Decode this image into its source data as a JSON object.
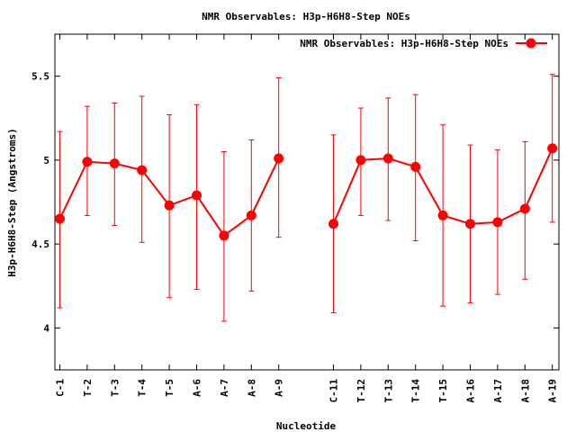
{
  "chart_data": {
    "type": "line",
    "title": "NMR Observables: H3p-H6H8-Step NOEs",
    "xlabel": "Nucleotide",
    "ylabel": "H3p-H6H8-Step (Angstroms)",
    "ylim": [
      3.75,
      5.75
    ],
    "yticks": [
      "4",
      "4.5",
      "5",
      "5.5"
    ],
    "grid": false,
    "legend_position": "top-right",
    "categories": [
      "C-1",
      "T-2",
      "T-3",
      "T-4",
      "T-5",
      "A-6",
      "A-7",
      "A-8",
      "A-9",
      "",
      "C-11",
      "T-12",
      "T-13",
      "T-14",
      "T-15",
      "A-16",
      "A-17",
      "A-18",
      "A-19"
    ],
    "series": [
      {
        "name": "NMR Observables: H3p-H6H8-Step NOEs",
        "color": "#ff0000",
        "values": [
          4.65,
          4.99,
          4.98,
          4.94,
          4.73,
          4.79,
          4.55,
          4.67,
          5.01,
          null,
          4.62,
          5.0,
          5.01,
          4.96,
          4.67,
          4.62,
          4.63,
          4.71,
          5.07
        ],
        "err_low": [
          4.12,
          4.67,
          4.61,
          4.51,
          4.18,
          4.23,
          4.04,
          4.22,
          4.54,
          null,
          4.09,
          4.67,
          4.64,
          4.52,
          4.13,
          4.15,
          4.2,
          4.29,
          4.63
        ],
        "err_high": [
          5.17,
          5.32,
          5.34,
          5.38,
          5.27,
          5.33,
          5.05,
          5.12,
          5.49,
          null,
          5.15,
          5.31,
          5.37,
          5.39,
          5.21,
          5.09,
          5.06,
          5.11,
          5.51
        ]
      }
    ]
  }
}
